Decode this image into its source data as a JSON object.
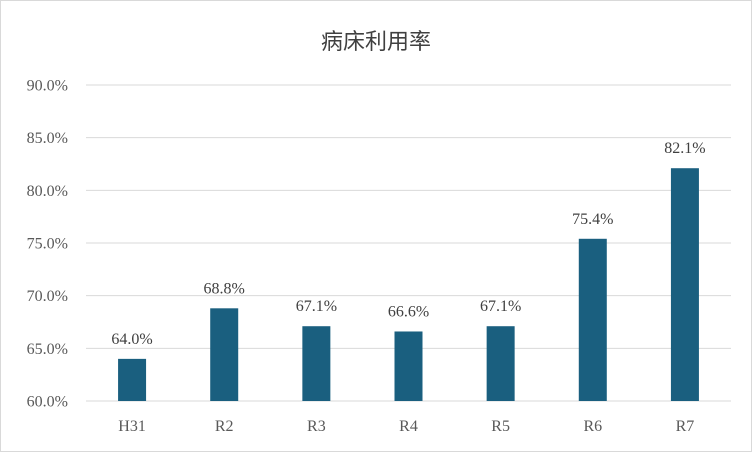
{
  "chart_data": {
    "type": "bar",
    "title": "病床利用率",
    "categories": [
      "H31",
      "R2",
      "R3",
      "R4",
      "R5",
      "R6",
      "R7"
    ],
    "values": [
      64.0,
      68.8,
      67.1,
      66.6,
      67.1,
      75.4,
      82.1
    ],
    "data_labels": [
      "64.0%",
      "68.8%",
      "67.1%",
      "66.6%",
      "67.1%",
      "75.4%",
      "82.1%"
    ],
    "y_ticks": [
      "60.0%",
      "65.0%",
      "70.0%",
      "75.0%",
      "80.0%",
      "85.0%",
      "90.0%"
    ],
    "ylim": [
      60,
      90
    ],
    "grid": true,
    "legend": "none",
    "bar_color": "#1a5f7f",
    "grid_color": "#d9d9d9"
  }
}
